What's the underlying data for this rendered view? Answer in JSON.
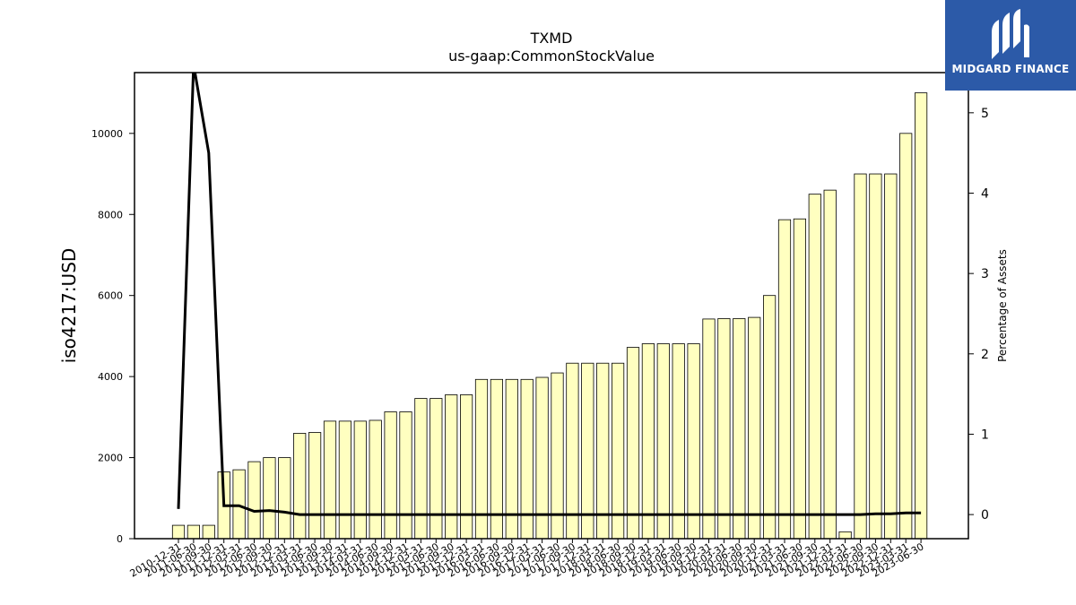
{
  "chart_data": {
    "type": "bar",
    "title": "TXMD",
    "subtitle": "us-gaap:CommonStockValue",
    "ylabel": "iso4217:USD",
    "ylabel_right": "Percentage of Assets",
    "ylim": [
      0,
      11500
    ],
    "ylim_right": [
      -0.3,
      5.5
    ],
    "yticks": [
      0,
      2000,
      4000,
      6000,
      8000,
      10000
    ],
    "yticks_right": [
      0,
      1,
      2,
      3,
      4,
      5
    ],
    "grid": false,
    "categories": [
      "2010-12-31",
      "2011-06-30",
      "2011-09-30",
      "2011-12-31",
      "2012-03-31",
      "2012-06-30",
      "2012-09-30",
      "2012-12-31",
      "2013-03-31",
      "2013-06-30",
      "2013-09-30",
      "2013-12-31",
      "2014-03-31",
      "2014-06-30",
      "2014-09-30",
      "2014-12-31",
      "2015-03-31",
      "2015-06-30",
      "2015-09-30",
      "2015-12-31",
      "2016-03-31",
      "2016-06-30",
      "2016-09-30",
      "2016-12-31",
      "2017-03-31",
      "2017-06-30",
      "2017-09-30",
      "2017-12-31",
      "2018-03-31",
      "2018-06-30",
      "2018-09-30",
      "2018-12-31",
      "2019-03-31",
      "2019-06-30",
      "2019-09-30",
      "2019-12-31",
      "2020-03-31",
      "2020-06-30",
      "2020-09-30",
      "2020-12-31",
      "2021-03-31",
      "2021-06-30",
      "2021-09-30",
      "2021-12-31",
      "2022-03-31",
      "2022-06-30",
      "2022-09-30",
      "2022-12-31",
      "2023-03-31",
      "2023-06-30"
    ],
    "series": [
      {
        "type": "bar",
        "axis": "left",
        "values": [
          330,
          330,
          330,
          1650,
          1700,
          1900,
          2000,
          2000,
          2600,
          2620,
          2900,
          2900,
          2900,
          2920,
          3130,
          3130,
          3460,
          3460,
          3550,
          3550,
          3930,
          3930,
          3930,
          3930,
          3980,
          4090,
          4330,
          4330,
          4330,
          4330,
          4720,
          4810,
          4810,
          4810,
          4810,
          5420,
          5430,
          5430,
          5460,
          6000,
          7870,
          7890,
          8500,
          8600,
          170,
          9000,
          9000,
          9000,
          10000,
          11000
        ],
        "color": "#ffffc0"
      },
      {
        "type": "line",
        "axis": "right",
        "values": [
          0.07,
          5.6,
          4.5,
          0.11,
          0.11,
          0.04,
          0.05,
          0.03,
          0.0,
          0.0,
          0.0,
          0.0,
          0.0,
          0.0,
          0.0,
          0.0,
          0.0,
          0.0,
          0.0,
          0.0,
          0.0,
          0.0,
          0.0,
          0.0,
          0.0,
          0.0,
          0.0,
          0.0,
          0.0,
          0.0,
          0.0,
          0.0,
          0.0,
          0.0,
          0.0,
          0.0,
          0.0,
          0.0,
          0.0,
          0.0,
          0.0,
          0.0,
          0.0,
          0.0,
          0.0,
          0.0,
          0.01,
          0.01,
          0.02,
          0.02
        ],
        "color": "#000000"
      }
    ]
  },
  "logo": {
    "text": "MIDGARD FINANCE",
    "color": "#2c5aa8"
  }
}
